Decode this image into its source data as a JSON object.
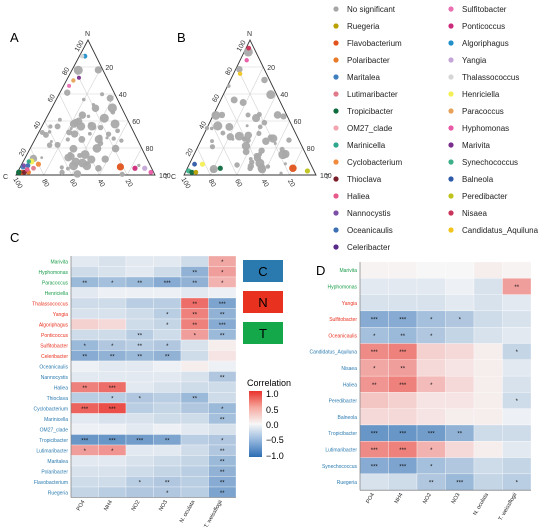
{
  "figure": {
    "panels": [
      "A",
      "B",
      "C",
      "D"
    ],
    "group_keys": [
      {
        "label": "C",
        "color": "#2a7ab0"
      },
      {
        "label": "N",
        "color": "#e8311e"
      },
      {
        "label": "T",
        "color": "#14a84a"
      }
    ],
    "taxon_colors": {
      "nonsig": "#9e9e9e",
      "red": "#e8311e",
      "green": "#1a9d4a",
      "blue": "#2a7ab0"
    }
  },
  "chart_data": [
    {
      "type": "scatter",
      "id": "ternary-A",
      "panel": "A",
      "vertices": {
        "top": "N",
        "left": "C",
        "right": "T"
      },
      "ticks": [
        "20",
        "40",
        "60",
        "80",
        "100"
      ],
      "legend": [
        {
          "name": "No significant",
          "color": "#a6a6a6"
        },
        {
          "name": "Ruegeria",
          "color": "#b8a000"
        },
        {
          "name": "Flavobacterium",
          "color": "#e0531c"
        },
        {
          "name": "Polaribacter",
          "color": "#e87b2a"
        },
        {
          "name": "Maritalea",
          "color": "#3f7fbf"
        },
        {
          "name": "Lutimaribacter",
          "color": "#e07a8a"
        },
        {
          "name": "Tropicibacter",
          "color": "#0e6b3e"
        },
        {
          "name": "OM27_clade",
          "color": "#f4a6b0"
        },
        {
          "name": "Marinicella",
          "color": "#2ea58c"
        },
        {
          "name": "Cyclobacterium",
          "color": "#f08a3c"
        },
        {
          "name": "Thioclava",
          "color": "#7a1f2a"
        },
        {
          "name": "Haliea",
          "color": "#e75b8c"
        },
        {
          "name": "Nannocystis",
          "color": "#7b4fa6"
        },
        {
          "name": "Oceanicaulis",
          "color": "#3c6fb4"
        },
        {
          "name": "Celeribacter",
          "color": "#5a2a8a"
        },
        {
          "name": "Sulfitobacter",
          "color": "#e96fb0"
        },
        {
          "name": "Ponticoccus",
          "color": "#cc2a7a"
        },
        {
          "name": "Algoriphagus",
          "color": "#1f8fc9"
        },
        {
          "name": "Yangia",
          "color": "#c4a6d6"
        },
        {
          "name": "Thalassococcus",
          "color": "#d6d6d6"
        },
        {
          "name": "Henriciella",
          "color": "#f3ef55"
        },
        {
          "name": "Paracoccus",
          "color": "#e8a35a"
        },
        {
          "name": "Hyphomonas",
          "color": "#e85aa6"
        },
        {
          "name": "Marivita",
          "color": "#7a2e8c"
        },
        {
          "name": "Synechococcus",
          "color": "#3db08a"
        },
        {
          "name": "Balneola",
          "color": "#2f5aa8"
        },
        {
          "name": "Peredibacter",
          "color": "#bfc41c"
        },
        {
          "name": "Nisaea",
          "color": "#c9355a"
        },
        {
          "name": "Candidatus_Aquiluna",
          "color": "#f2c41c"
        }
      ]
    },
    {
      "type": "scatter",
      "id": "ternary-B",
      "panel": "B",
      "vertices": {
        "top": "N",
        "left": "C",
        "right": "T"
      },
      "ticks": [
        "20",
        "40",
        "60",
        "80",
        "100"
      ]
    },
    {
      "type": "heatmap",
      "id": "heatmap-C",
      "panel": "C",
      "x": [
        "PO4",
        "NH4",
        "NO2",
        "NO3",
        "N. oculata",
        "T. weissflogii"
      ],
      "rows": [
        {
          "name": "Marivita",
          "group": "green",
          "values": [
            -0.1,
            -0.15,
            -0.1,
            -0.1,
            -0.2,
            0.4
          ],
          "sig": [
            "",
            "",
            "",
            "",
            "",
            "*"
          ]
        },
        {
          "name": "Hyphomonas",
          "group": "green",
          "values": [
            -0.2,
            -0.15,
            -0.1,
            -0.2,
            -0.5,
            0.45
          ],
          "sig": [
            "",
            "",
            "",
            "",
            "**",
            "*"
          ]
        },
        {
          "name": "Paracoccus",
          "group": "green",
          "values": [
            -0.45,
            -0.4,
            -0.45,
            -0.55,
            -0.5,
            0.35
          ],
          "sig": [
            "**",
            "*",
            "**",
            "***",
            "**",
            "*"
          ]
        },
        {
          "name": "Henriciella",
          "group": "green",
          "values": [
            -0.1,
            -0.05,
            -0.05,
            -0.05,
            -0.1,
            -0.05
          ],
          "sig": [
            "",
            "",
            "",
            "",
            "",
            ""
          ]
        },
        {
          "name": "Thalassococcus",
          "group": "red",
          "values": [
            -0.2,
            -0.2,
            -0.3,
            -0.3,
            0.7,
            -0.6
          ],
          "sig": [
            "",
            "",
            "",
            "",
            "**",
            "***"
          ]
        },
        {
          "name": "Yangia",
          "group": "red",
          "values": [
            -0.15,
            -0.15,
            -0.2,
            -0.3,
            0.6,
            -0.5
          ],
          "sig": [
            "",
            "",
            "",
            "*",
            "**",
            "**"
          ]
        },
        {
          "name": "Algoriphagus",
          "group": "red",
          "values": [
            0.2,
            0.15,
            -0.2,
            -0.25,
            0.6,
            -0.55
          ],
          "sig": [
            "",
            "",
            "",
            "*",
            "**",
            "***"
          ]
        },
        {
          "name": "Ponticoccus",
          "group": "red",
          "values": [
            -0.2,
            -0.2,
            -0.3,
            -0.2,
            0.45,
            -0.45
          ],
          "sig": [
            "",
            "",
            "**",
            "",
            "*",
            "**"
          ]
        },
        {
          "name": "Sulfitobacter",
          "group": "red",
          "values": [
            -0.45,
            -0.35,
            -0.3,
            -0.35,
            -0.15,
            0.05
          ],
          "sig": [
            "*",
            "*",
            "**",
            "*",
            "",
            ""
          ]
        },
        {
          "name": "Celeribacter",
          "group": "red",
          "values": [
            -0.55,
            -0.5,
            -0.45,
            -0.5,
            -0.2,
            0.1
          ],
          "sig": [
            "**",
            "**",
            "**",
            "**",
            "",
            ""
          ]
        },
        {
          "name": "Oceanicaulis",
          "group": "blue",
          "values": [
            -0.05,
            -0.1,
            -0.1,
            -0.05,
            0.05,
            -0.05
          ],
          "sig": [
            "",
            "",
            "",
            "",
            "",
            ""
          ]
        },
        {
          "name": "Nannocystis",
          "group": "blue",
          "values": [
            -0.1,
            -0.1,
            -0.1,
            -0.1,
            -0.15,
            -0.35
          ],
          "sig": [
            "",
            "",
            "",
            "",
            "",
            "**"
          ]
        },
        {
          "name": "Haliea",
          "group": "blue",
          "values": [
            0.6,
            0.7,
            -0.1,
            -0.15,
            -0.2,
            -0.2
          ],
          "sig": [
            "**",
            "***",
            "",
            "",
            "",
            ""
          ]
        },
        {
          "name": "Thioclava",
          "group": "blue",
          "values": [
            -0.3,
            -0.3,
            -0.35,
            -0.3,
            -0.45,
            -0.2
          ],
          "sig": [
            "",
            "*",
            "*",
            "",
            "**",
            ""
          ]
        },
        {
          "name": "Cyclobacterium",
          "group": "blue",
          "values": [
            0.75,
            0.85,
            -0.3,
            -0.25,
            -0.35,
            -0.45
          ],
          "sig": [
            "***",
            "***",
            "",
            "",
            "",
            "*"
          ]
        },
        {
          "name": "Marinicella",
          "group": "blue",
          "values": [
            -0.1,
            -0.15,
            -0.15,
            -0.2,
            -0.2,
            -0.4
          ],
          "sig": [
            "",
            "",
            "",
            "",
            "",
            "**"
          ]
        },
        {
          "name": "OM27_clade",
          "group": "blue",
          "values": [
            -0.05,
            -0.05,
            -0.1,
            -0.05,
            -0.1,
            -0.15
          ],
          "sig": [
            "",
            "",
            "",
            "",
            "",
            ""
          ]
        },
        {
          "name": "Tropicibacter",
          "group": "blue",
          "values": [
            -0.7,
            -0.7,
            -0.65,
            -0.6,
            -0.3,
            -0.35
          ],
          "sig": [
            "***",
            "***",
            "***",
            "**",
            "",
            "*"
          ]
        },
        {
          "name": "Lutimaribacter",
          "group": "blue",
          "values": [
            0.45,
            0.5,
            -0.1,
            -0.1,
            -0.2,
            -0.35
          ],
          "sig": [
            "*",
            "*",
            "",
            "",
            "",
            "**"
          ]
        },
        {
          "name": "Maritalea",
          "group": "blue",
          "values": [
            -0.1,
            -0.1,
            -0.15,
            -0.2,
            -0.25,
            -0.45
          ],
          "sig": [
            "",
            "",
            "",
            "",
            "",
            "**"
          ]
        },
        {
          "name": "Polaribacter",
          "group": "blue",
          "values": [
            -0.15,
            -0.15,
            -0.2,
            -0.25,
            -0.3,
            -0.5
          ],
          "sig": [
            "",
            "",
            "",
            "",
            "",
            "**"
          ]
        },
        {
          "name": "Flavobacterium",
          "group": "blue",
          "values": [
            -0.2,
            -0.2,
            -0.3,
            -0.35,
            -0.3,
            -0.55
          ],
          "sig": [
            "",
            "",
            "*",
            "**",
            "",
            "**"
          ]
        },
        {
          "name": "Ruegeria",
          "group": "blue",
          "values": [
            -0.25,
            -0.3,
            -0.35,
            -0.35,
            -0.3,
            -0.6
          ],
          "sig": [
            "",
            "",
            "",
            "*",
            "",
            "**"
          ]
        }
      ],
      "colorbar": {
        "title": "Correlation",
        "ticks": [
          "1.0",
          "0.5",
          "0.0",
          "−0.5",
          "−1.0"
        ]
      }
    },
    {
      "type": "heatmap",
      "id": "heatmap-D",
      "panel": "D",
      "x": [
        "PO4",
        "NH4",
        "NO2",
        "NO3",
        "N. oculata",
        "T. weissflogii"
      ],
      "rows": [
        {
          "name": "Marivita",
          "group": "green",
          "values": [
            0.02,
            0.02,
            0.0,
            0.0,
            0.05,
            0.02
          ],
          "sig": [
            "",
            "",
            "",
            "",
            "",
            ""
          ]
        },
        {
          "name": "Hyphomonas",
          "group": "green",
          "values": [
            -0.1,
            -0.1,
            -0.1,
            -0.05,
            -0.15,
            0.45
          ],
          "sig": [
            "",
            "",
            "",
            "",
            "",
            "**"
          ]
        },
        {
          "name": "Yangia",
          "group": "red",
          "values": [
            -0.15,
            -0.15,
            -0.15,
            -0.1,
            -0.15,
            -0.1
          ],
          "sig": [
            "",
            "",
            "",
            "",
            "",
            ""
          ]
        },
        {
          "name": "Sulfitobacter",
          "group": "red",
          "values": [
            -0.55,
            -0.55,
            -0.4,
            -0.35,
            -0.2,
            -0.15
          ],
          "sig": [
            "***",
            "***",
            "*",
            "*",
            "",
            ""
          ]
        },
        {
          "name": "Oceanicaulis",
          "group": "red",
          "values": [
            -0.4,
            -0.45,
            -0.35,
            -0.25,
            -0.15,
            -0.1
          ],
          "sig": [
            "*",
            "**",
            "*",
            "",
            "",
            ""
          ]
        },
        {
          "name": "Candidatus_Aquiluna",
          "group": "blue",
          "values": [
            0.55,
            0.6,
            0.2,
            0.15,
            0.05,
            -0.25
          ],
          "sig": [
            "***",
            "***",
            "",
            "",
            "",
            "*"
          ]
        },
        {
          "name": "Nisaea",
          "group": "blue",
          "values": [
            0.4,
            0.45,
            0.15,
            0.1,
            0.05,
            -0.1
          ],
          "sig": [
            "*",
            "**",
            "",
            "",
            "",
            ""
          ]
        },
        {
          "name": "Haliea",
          "group": "blue",
          "values": [
            0.5,
            0.6,
            0.3,
            0.15,
            0.05,
            -0.15
          ],
          "sig": [
            "**",
            "***",
            "*",
            "",
            "",
            ""
          ]
        },
        {
          "name": "Peredibacter",
          "group": "blue",
          "values": [
            0.25,
            0.2,
            0.1,
            0.1,
            0.05,
            -0.2
          ],
          "sig": [
            "",
            "",
            "",
            "",
            "",
            "*"
          ]
        },
        {
          "name": "Balneola",
          "group": "blue",
          "values": [
            0.15,
            0.15,
            0.1,
            0.05,
            0.05,
            -0.05
          ],
          "sig": [
            "",
            "",
            "",
            "",
            "",
            ""
          ]
        },
        {
          "name": "Tropicibacter",
          "group": "blue",
          "values": [
            -0.7,
            -0.7,
            -0.65,
            -0.5,
            -0.2,
            -0.2
          ],
          "sig": [
            "***",
            "***",
            "***",
            "**",
            "",
            ""
          ]
        },
        {
          "name": "Lutimaribacter",
          "group": "blue",
          "values": [
            0.55,
            0.6,
            0.35,
            0.15,
            0.05,
            -0.1
          ],
          "sig": [
            "***",
            "***",
            "*",
            "",
            "",
            ""
          ]
        },
        {
          "name": "Synechococcus",
          "group": "blue",
          "values": [
            -0.55,
            -0.6,
            -0.4,
            -0.35,
            -0.2,
            -0.25
          ],
          "sig": [
            "***",
            "***",
            "*",
            "",
            "",
            ""
          ]
        },
        {
          "name": "Ruegeria",
          "group": "blue",
          "values": [
            -0.15,
            -0.2,
            -0.35,
            -0.45,
            -0.25,
            -0.3
          ],
          "sig": [
            "",
            "",
            "**",
            "***",
            "",
            "*"
          ]
        }
      ]
    }
  ]
}
